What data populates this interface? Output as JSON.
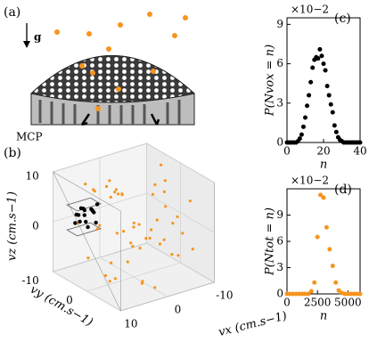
{
  "diagram": {
    "label": "(a)",
    "gravity": "g",
    "detector": "MCP"
  },
  "chart_data": [
    {
      "type": "scatter3d",
      "label": "(b)",
      "xlabel": "vx (cm.s−1)",
      "ylabel": "vy (cm.s−1)",
      "zlabel": "vz (cm.s−1)",
      "xlim": [
        -10,
        10
      ],
      "ylim": [
        -10,
        10
      ],
      "zlim": [
        -10,
        10
      ],
      "xticks": [
        10,
        0,
        -10
      ],
      "yticks": [
        -10,
        0
      ],
      "zticks": [
        0,
        10
      ],
      "grid": true,
      "series": [
        {
          "color": "#f7941d",
          "x": [
            1,
            -3,
            5,
            -6,
            2,
            8,
            -8,
            0,
            4,
            -2,
            6,
            -5,
            3,
            -9,
            7,
            -1,
            9,
            -4,
            1,
            -7,
            5,
            2,
            -3,
            0,
            6,
            -6,
            3,
            -1,
            8,
            -8,
            4,
            -2,
            1,
            -5,
            7,
            0,
            -4,
            2,
            5,
            -3,
            -7,
            3,
            9,
            -9,
            1,
            -1,
            6,
            -6,
            2,
            0
          ],
          "y": [
            3,
            -5,
            7,
            1,
            -8,
            4,
            -2,
            9,
            -6,
            2,
            0,
            6,
            -3,
            5,
            -7,
            8,
            -1,
            -9,
            4,
            7,
            2,
            -4,
            9,
            0,
            -6,
            3,
            6,
            -7,
            1,
            -3,
            8,
            5,
            -2,
            0,
            3,
            -8,
            6,
            9,
            -5,
            1,
            -4,
            -1,
            7,
            2,
            5,
            -6,
            8,
            -2,
            1,
            -3
          ],
          "z": [
            2,
            -6,
            5,
            8,
            -3,
            -7,
            4,
            1,
            6,
            -2,
            -8,
            3,
            9,
            -5,
            0,
            7,
            -4,
            2,
            -9,
            6,
            1,
            5,
            -3,
            0,
            8,
            -6,
            -1,
            4,
            3,
            9,
            -7,
            -2,
            6,
            0,
            -4,
            5,
            2,
            -8,
            7,
            -1,
            3,
            8,
            -5,
            -3,
            0,
            4,
            1,
            6,
            -6,
            -2
          ]
        },
        {
          "color": "#000000",
          "x": [
            4,
            3,
            5,
            4,
            2,
            6,
            3,
            5,
            4,
            3,
            5,
            4,
            2,
            6,
            4
          ],
          "y": [
            -9,
            -8,
            -9,
            -7,
            -9,
            -8,
            -10,
            -8,
            -9,
            -7,
            -10,
            -8,
            -8,
            -9,
            -10
          ],
          "z": [
            0,
            1,
            -1,
            2,
            0,
            1,
            -2,
            2,
            1,
            -1,
            0,
            -2,
            2,
            -1,
            1
          ]
        }
      ]
    },
    {
      "type": "scatter",
      "label": "(c)",
      "xlabel": "n",
      "ylabel": "P(Nvox = n)",
      "scale_label": "×10−2",
      "xlim": [
        0,
        40
      ],
      "ylim": [
        0,
        9.5
      ],
      "xticks": [
        0,
        20,
        40
      ],
      "yticks": [
        0,
        3,
        6,
        9
      ],
      "series": [
        {
          "color": "#000000",
          "x": [
            0,
            1,
            2,
            3,
            4,
            5,
            6,
            7,
            8,
            9,
            10,
            11,
            12,
            13,
            14,
            15,
            16,
            17,
            18,
            19,
            20,
            21,
            22,
            23,
            24,
            25,
            26,
            27,
            28,
            29,
            30,
            31,
            32,
            33,
            34,
            35,
            36,
            37,
            38,
            39,
            40
          ],
          "values": [
            0,
            0,
            0,
            0,
            0,
            0,
            0.1,
            0.3,
            0.6,
            1.2,
            1.9,
            2.8,
            3.6,
            4.6,
            5.7,
            6.3,
            6.5,
            6.4,
            7.1,
            6.6,
            6.0,
            5.5,
            4.3,
            3.6,
            2.9,
            2.3,
            1.3,
            0.8,
            0.4,
            0.2,
            0.1,
            0,
            0,
            0,
            0,
            0,
            0,
            0,
            0,
            0,
            0
          ]
        }
      ]
    },
    {
      "type": "scatter",
      "label": "(d)",
      "xlabel": "n",
      "ylabel": "P(Ntot = n)",
      "scale_label": "×10−2",
      "xlim": [
        0,
        6000
      ],
      "ylim": [
        0,
        12
      ],
      "xticks": [
        0,
        2500,
        5000
      ],
      "yticks": [
        0,
        3,
        6,
        9
      ],
      "series": [
        {
          "color": "#f7941d",
          "x": [
            0,
            250,
            500,
            750,
            1000,
            1250,
            1500,
            1750,
            2000,
            2250,
            2500,
            2750,
            3000,
            3250,
            3500,
            3750,
            4000,
            4250,
            4500,
            4750,
            5000,
            5250,
            5500,
            5750,
            6000
          ],
          "values": [
            0,
            0,
            0,
            0,
            0,
            0,
            0,
            0,
            0.3,
            1.3,
            6.5,
            11.3,
            11.0,
            7.6,
            5.1,
            3.2,
            1.3,
            0.4,
            0.1,
            0,
            0,
            0,
            0,
            0,
            0
          ]
        }
      ]
    }
  ]
}
